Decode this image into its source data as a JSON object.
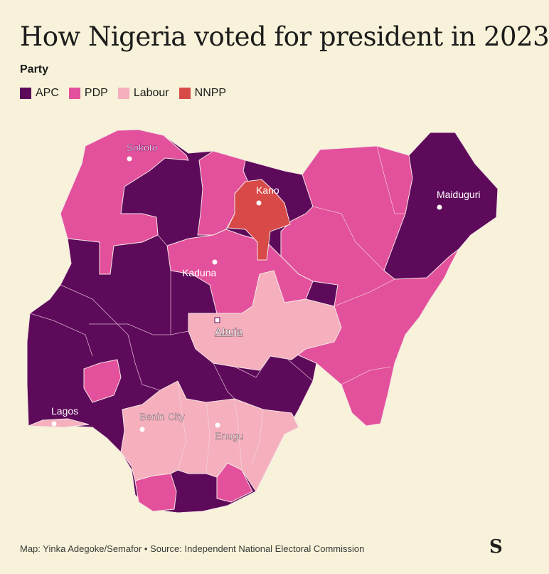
{
  "title": "How Nigeria voted for president in 2023",
  "legend": {
    "title": "Party",
    "items": [
      {
        "label": "APC",
        "color": "#5e0a5a"
      },
      {
        "label": "PDP",
        "color": "#e3509b"
      },
      {
        "label": "Labour",
        "color": "#f6afbd"
      },
      {
        "label": "NNPP",
        "color": "#d84a47"
      }
    ]
  },
  "cities": {
    "sokoto": "Sokoto",
    "kano": "Kano",
    "maiduguri": "Maiduguri",
    "kaduna": "Kaduna",
    "abuja": "Abuja",
    "lagos": "Lagos",
    "benin_city": "Benin City",
    "enugu": "Enugu"
  },
  "colors": {
    "background": "#f7f2d9",
    "apc": "#5e0a5a",
    "pdp": "#e3509b",
    "labour": "#f6afbd",
    "nnpp": "#d84a47"
  },
  "footer": "Map: Yinka Adegoke/Semafor • Source: Independent National Electoral Commission",
  "logo": "S"
}
